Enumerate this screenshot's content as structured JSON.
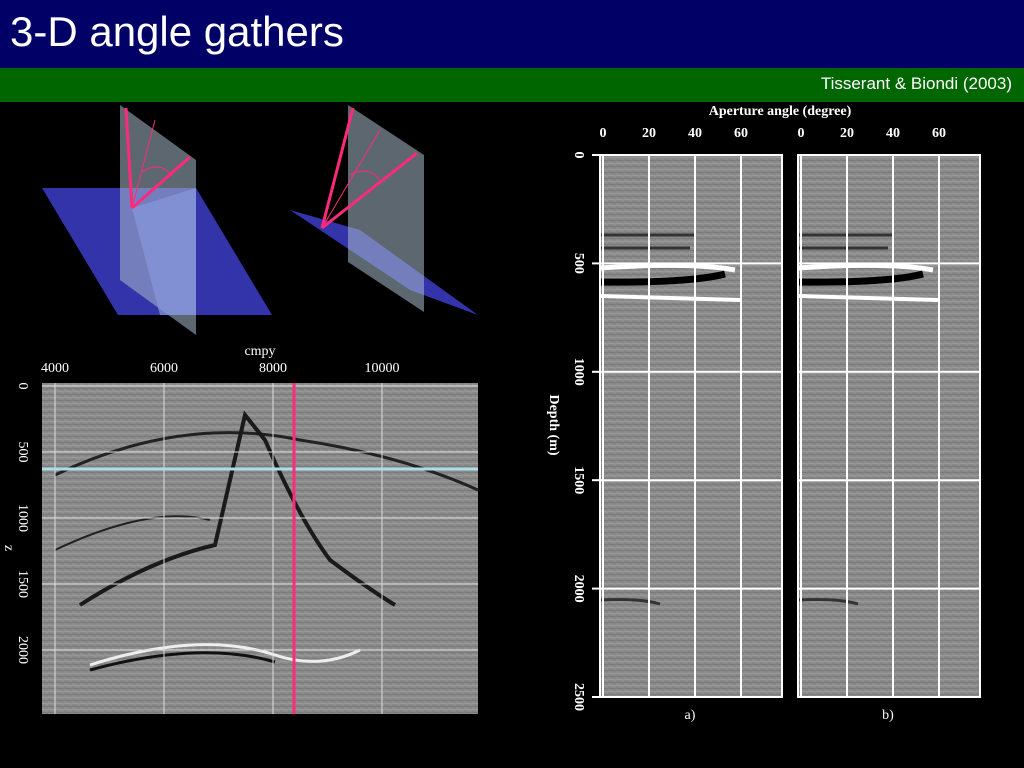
{
  "header": {
    "title": "3-D angle gathers",
    "citation": "Tisserant & Biondi (2003)"
  },
  "figures": {
    "cmpy_section": {
      "x_label": "cmpy",
      "x_ticks": [
        4000,
        6000,
        8000,
        10000
      ],
      "y_label": "z",
      "y_ticks": [
        0,
        500,
        1000,
        1500,
        2000
      ]
    },
    "angle_gathers": {
      "x_label": "Aperture angle (degree)",
      "y_label": "Depth (m)",
      "y_ticks": [
        0,
        500,
        1000,
        1500,
        2000,
        2500
      ],
      "panels": [
        {
          "label": "a)",
          "x_ticks": [
            0,
            20,
            40,
            60
          ]
        },
        {
          "label": "b)",
          "x_ticks": [
            0,
            20,
            40,
            60
          ]
        }
      ]
    }
  }
}
